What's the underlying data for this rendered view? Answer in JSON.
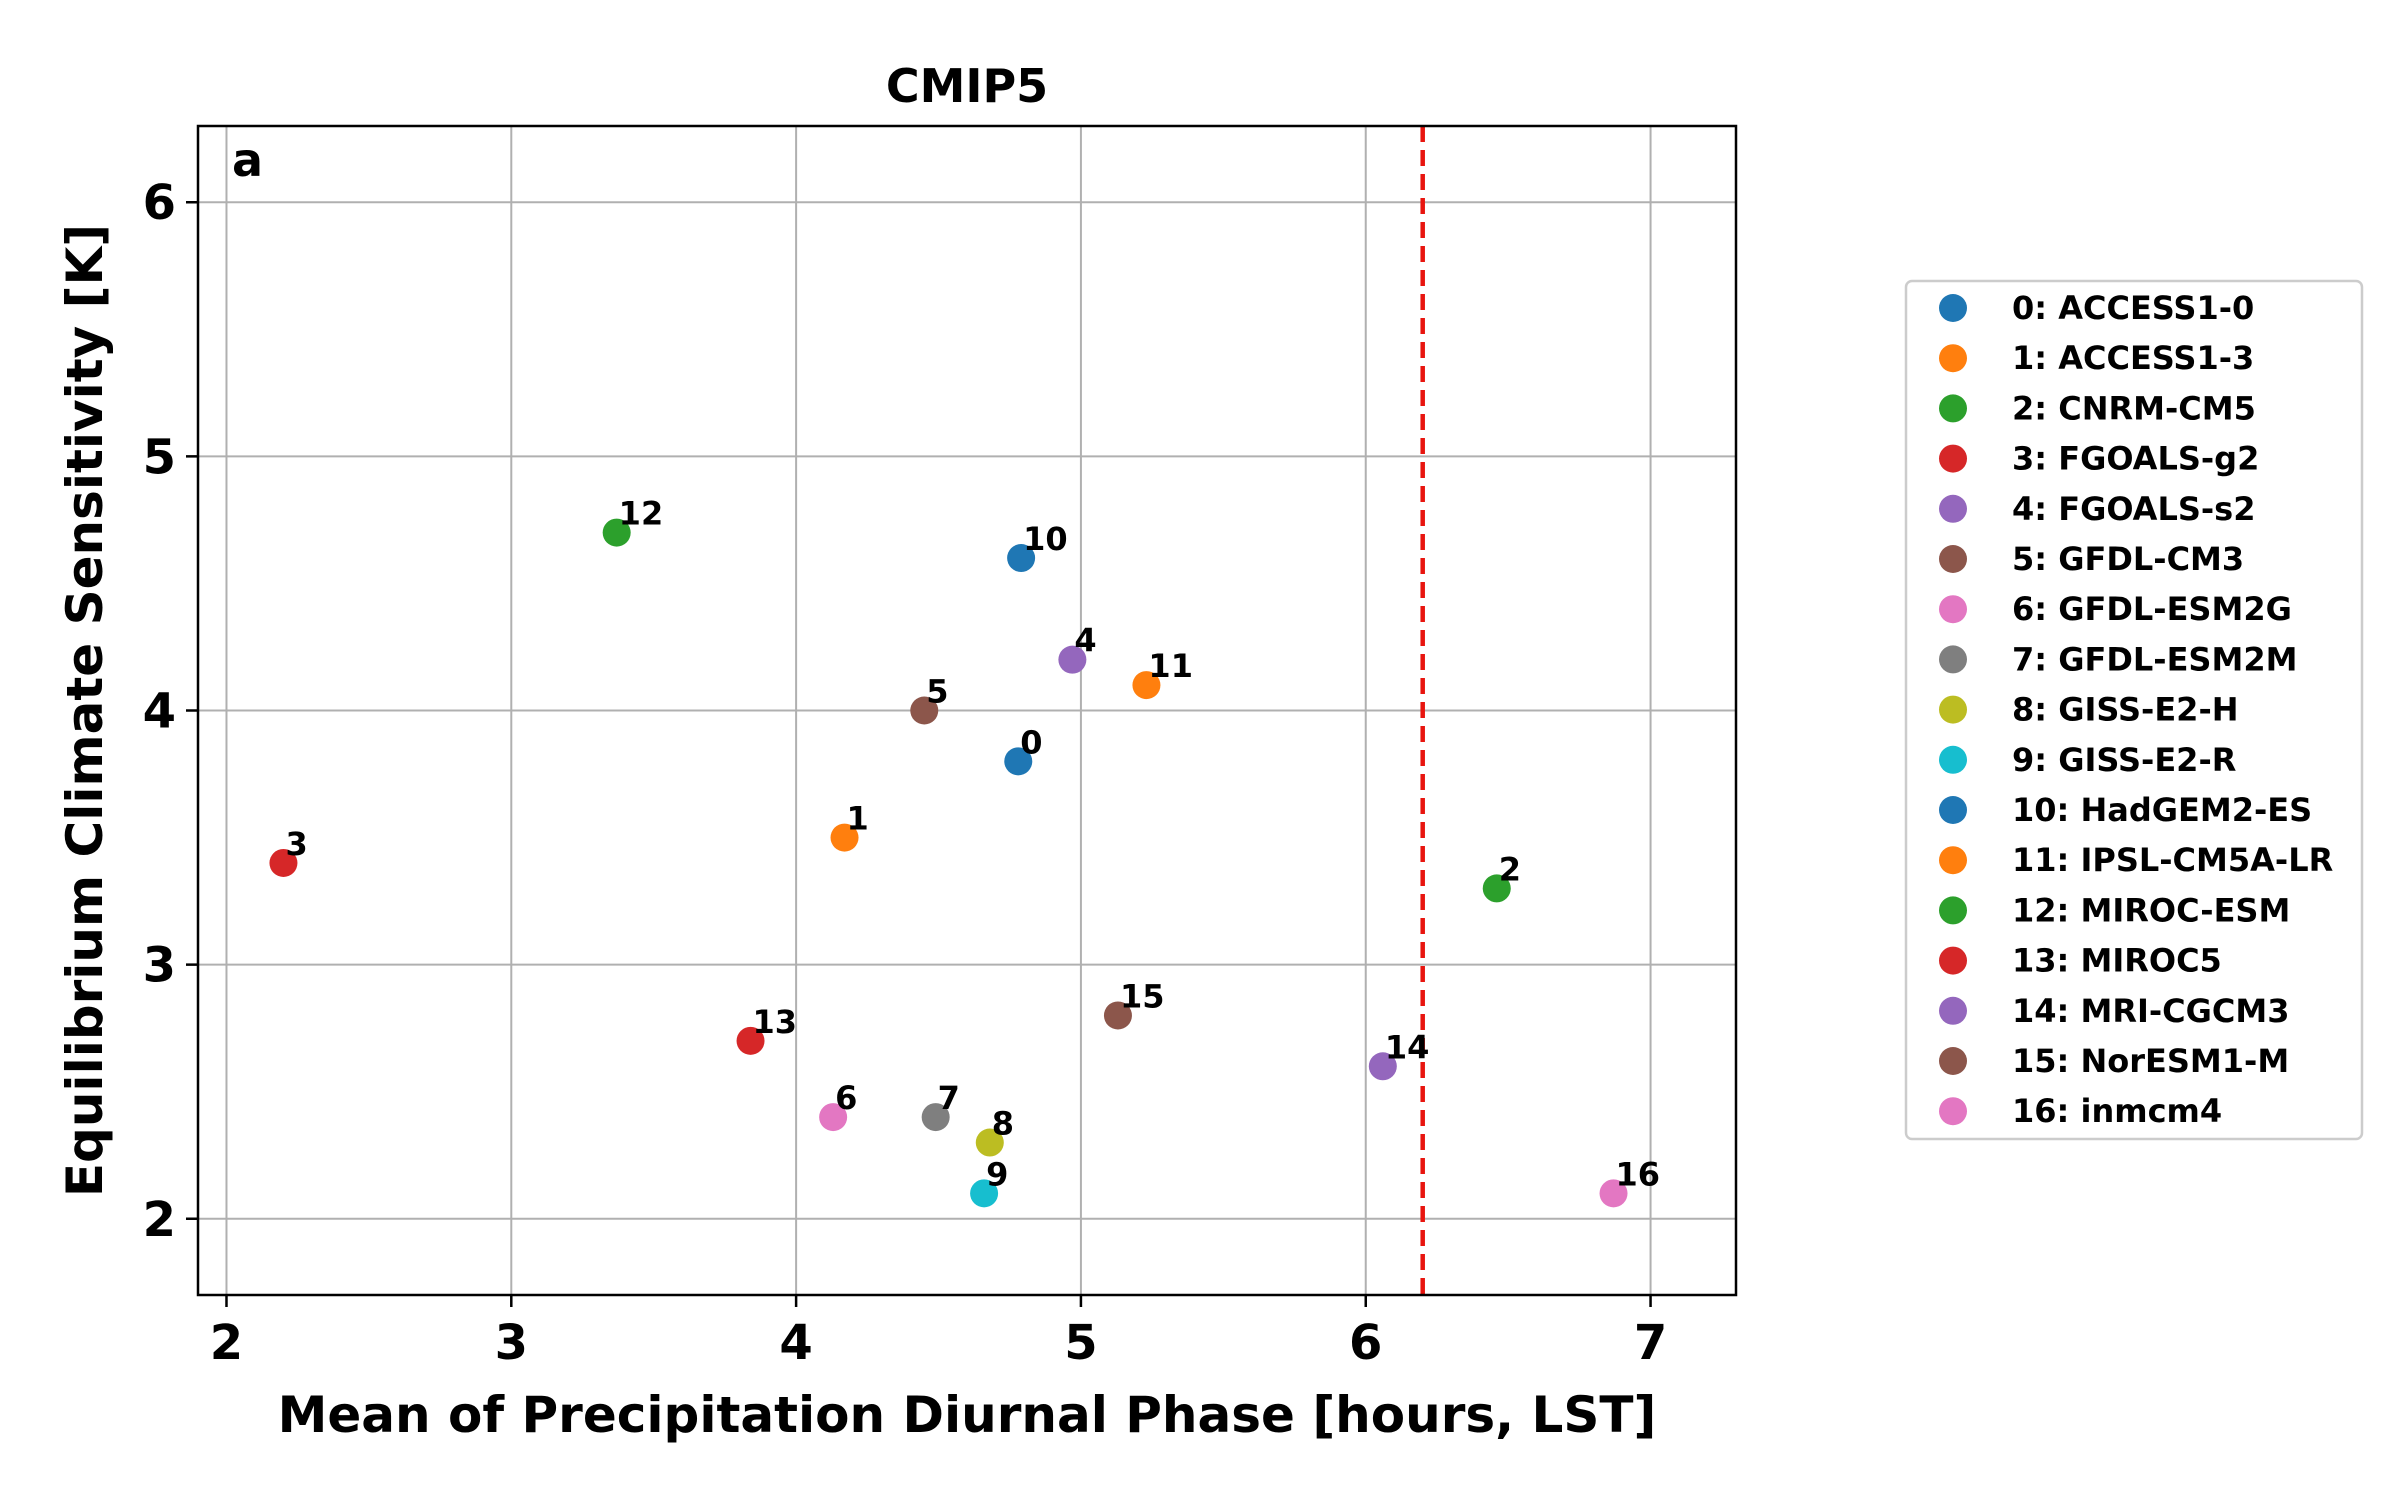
{
  "chart_data": {
    "type": "scatter",
    "title": "CMIP5",
    "panel_label": "a",
    "xlabel": "Mean of Precipitation Diurnal Phase [hours, LST]",
    "ylabel": "Equilibrium Climate Sensitivity [K]",
    "xlim": [
      1.9,
      7.3
    ],
    "ylim": [
      1.7,
      6.3
    ],
    "xticks": [
      "2",
      "3",
      "4",
      "5",
      "6",
      "7"
    ],
    "yticks": [
      "2",
      "3",
      "4",
      "5",
      "6"
    ],
    "grid": true,
    "legend_placement": "right, outside plot",
    "reference_line": {
      "x": 6.2,
      "color": "#e8150f",
      "style": "dashed"
    },
    "points": [
      {
        "id": "0",
        "name": "0: ACCESS1-0",
        "x": 4.78,
        "y": 3.8,
        "color": "#1f77b4"
      },
      {
        "id": "1",
        "name": "1: ACCESS1-3",
        "x": 4.17,
        "y": 3.5,
        "color": "#ff7f0e"
      },
      {
        "id": "2",
        "name": "2: CNRM-CM5",
        "x": 6.46,
        "y": 3.3,
        "color": "#2ca02c"
      },
      {
        "id": "3",
        "name": "3: FGOALS-g2",
        "x": 2.2,
        "y": 3.4,
        "color": "#d62728"
      },
      {
        "id": "4",
        "name": "4: FGOALS-s2",
        "x": 4.97,
        "y": 4.2,
        "color": "#9467bd"
      },
      {
        "id": "5",
        "name": "5: GFDL-CM3",
        "x": 4.45,
        "y": 4.0,
        "color": "#8c564b"
      },
      {
        "id": "6",
        "name": "6: GFDL-ESM2G",
        "x": 4.13,
        "y": 2.4,
        "color": "#e377c2"
      },
      {
        "id": "7",
        "name": "7: GFDL-ESM2M",
        "x": 4.49,
        "y": 2.4,
        "color": "#7f7f7f"
      },
      {
        "id": "8",
        "name": "8: GISS-E2-H",
        "x": 4.68,
        "y": 2.3,
        "color": "#bcbd22"
      },
      {
        "id": "9",
        "name": "9: GISS-E2-R",
        "x": 4.66,
        "y": 2.1,
        "color": "#17becf"
      },
      {
        "id": "10",
        "name": "10: HadGEM2-ES",
        "x": 4.79,
        "y": 4.6,
        "color": "#1f77b4"
      },
      {
        "id": "11",
        "name": "11: IPSL-CM5A-LR",
        "x": 5.23,
        "y": 4.1,
        "color": "#ff7f0e"
      },
      {
        "id": "12",
        "name": "12: MIROC-ESM",
        "x": 3.37,
        "y": 4.7,
        "color": "#2ca02c"
      },
      {
        "id": "13",
        "name": "13: MIROC5",
        "x": 3.84,
        "y": 2.7,
        "color": "#d62728"
      },
      {
        "id": "14",
        "name": "14: MRI-CGCM3",
        "x": 6.06,
        "y": 2.6,
        "color": "#9467bd"
      },
      {
        "id": "15",
        "name": "15: NorESM1-M",
        "x": 5.13,
        "y": 2.8,
        "color": "#8c564b"
      },
      {
        "id": "16",
        "name": "16: inmcm4",
        "x": 6.87,
        "y": 2.1,
        "color": "#e377c2"
      }
    ]
  }
}
